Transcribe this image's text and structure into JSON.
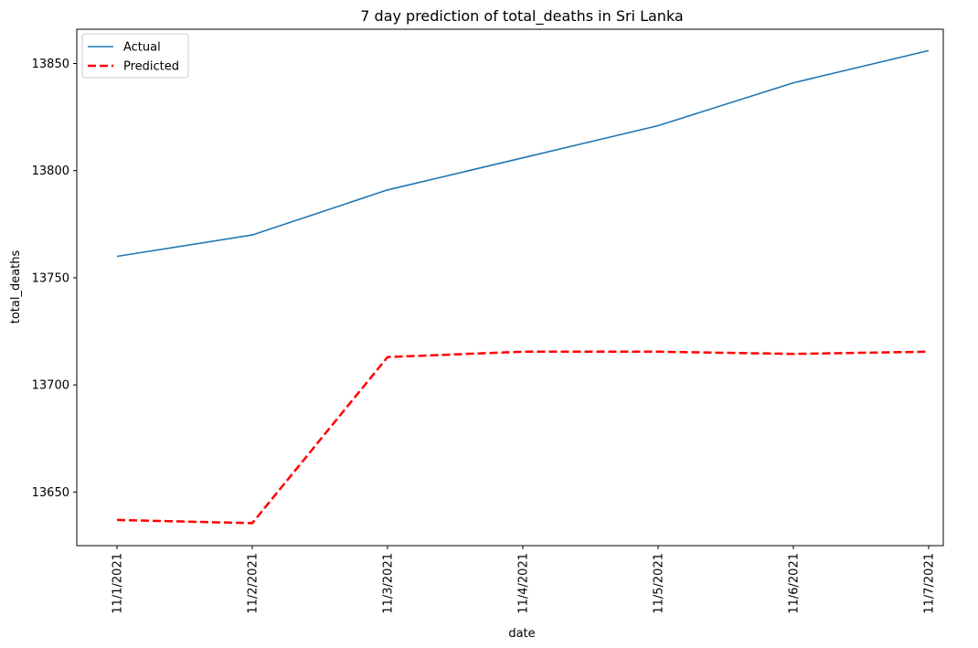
{
  "chart_data": {
    "type": "line",
    "title": "7 day prediction of total_deaths in Sri Lanka",
    "xlabel": "date",
    "ylabel": "total_deaths",
    "categories": [
      "11/1/2021",
      "11/2/2021",
      "11/3/2021",
      "11/4/2021",
      "11/5/2021",
      "11/6/2021",
      "11/7/2021"
    ],
    "series": [
      {
        "name": "Actual",
        "values": [
          13760,
          13770,
          13791,
          13806,
          13821,
          13841,
          13856
        ],
        "color": "#1f77b4",
        "style": "solid"
      },
      {
        "name": "Predicted",
        "values": [
          13637,
          13635.5,
          13713,
          13715.5,
          13715.5,
          13714.5,
          13715.5
        ],
        "color": "#ff0000",
        "style": "dashed"
      }
    ],
    "ylim": [
      13625,
      13866
    ],
    "yticks": [
      13650,
      13700,
      13750,
      13800,
      13850
    ],
    "grid": false,
    "legend_position": "top-left"
  }
}
